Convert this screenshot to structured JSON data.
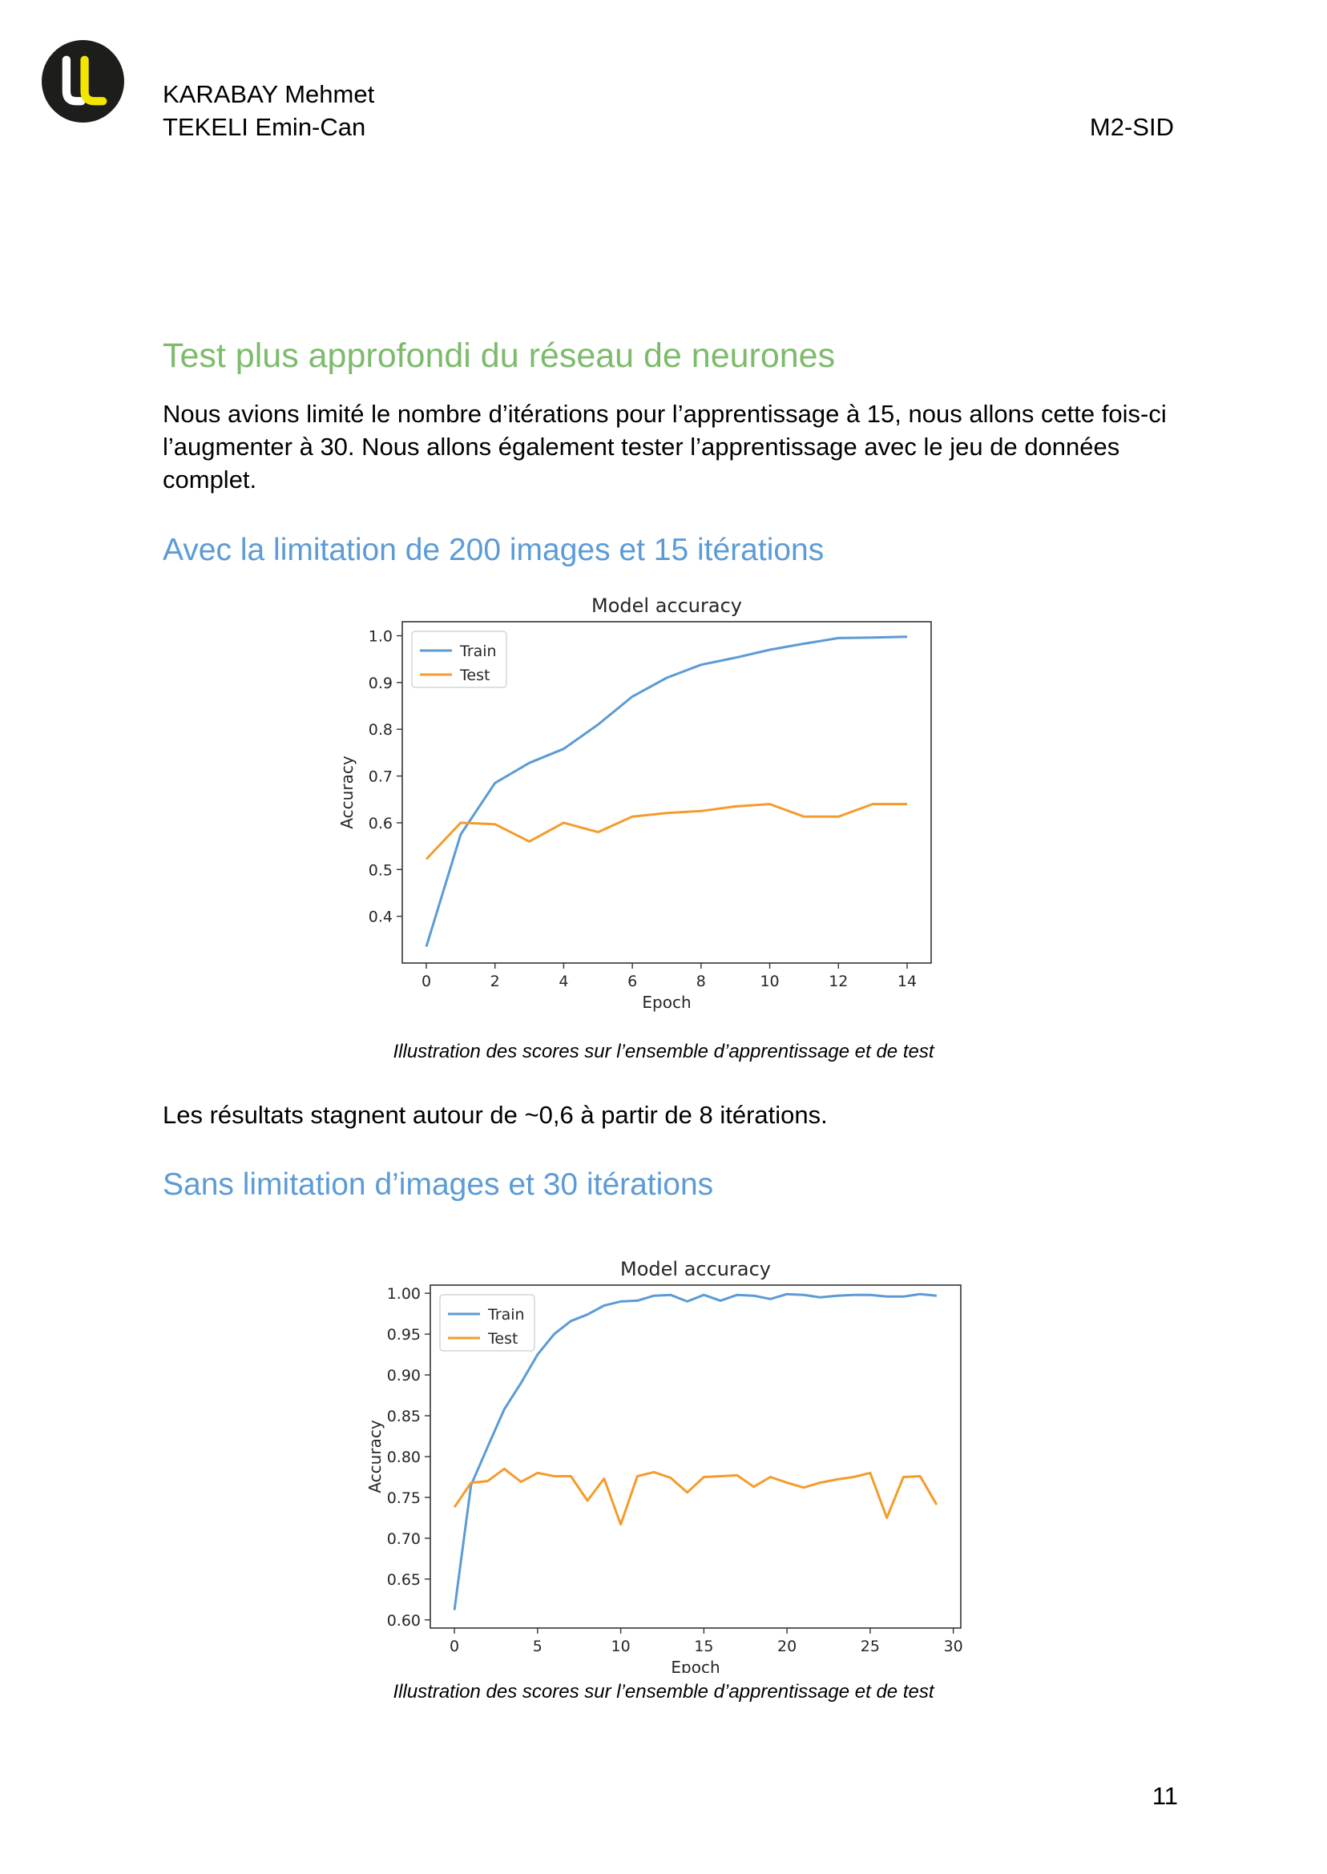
{
  "header": {
    "author1": "KARABAY Mehmet",
    "author2": "TEKELI Emin-Can",
    "program": "M2-SID"
  },
  "colors": {
    "logo_bg": "#1d1d1b",
    "logo_accent": "#f2e500",
    "heading_green": "#7dbb6c",
    "heading_blue": "#5c9bd6",
    "train": "#5b9bd5",
    "test": "#f39c2c"
  },
  "section": {
    "title": "Test plus approfondi du réseau de neurones",
    "intro_line1": "Nous avions limité le nombre d’itérations pour l’apprentissage à 15, nous allons cette fois-ci",
    "intro_line2": "l’augmenter à 30. Nous allons également tester l’apprentissage avec le jeu de données",
    "intro_line3": "complet."
  },
  "sub1": {
    "title": "Avec la limitation de 200 images et 15 itérations",
    "caption": "Illustration des scores sur l’ensemble d’apprentissage et de test",
    "conclusion": "Les résultats stagnent autour de ~0,6 à partir de 8 itérations."
  },
  "sub2": {
    "title": "Sans limitation d’images et 30 itérations",
    "caption": "Illustration des scores sur l’ensemble d’apprentissage et de test"
  },
  "page_number": "11",
  "chart_data": [
    {
      "type": "line",
      "title": "Model accuracy",
      "xlabel": "Epoch",
      "ylabel": "Accuracy",
      "xlim": [
        -0.7,
        14.7
      ],
      "ylim": [
        0.3,
        1.03
      ],
      "xticks": [
        0,
        2,
        4,
        6,
        8,
        10,
        12,
        14
      ],
      "yticks": [
        0.4,
        0.5,
        0.6,
        0.7,
        0.8,
        0.9,
        1.0
      ],
      "ytick_labels": [
        "0.4",
        "0.5",
        "0.6",
        "0.7",
        "0.8",
        "0.9",
        "1.0"
      ],
      "legend": "upper-left",
      "x": [
        0,
        1,
        2,
        3,
        4,
        5,
        6,
        7,
        8,
        9,
        10,
        11,
        12,
        13,
        14
      ],
      "series": [
        {
          "name": "Train",
          "color": "#5b9bd5",
          "values": [
            0.335,
            0.575,
            0.685,
            0.728,
            0.758,
            0.81,
            0.87,
            0.91,
            0.938,
            0.953,
            0.97,
            0.983,
            0.995,
            0.996,
            0.998
          ]
        },
        {
          "name": "Test",
          "color": "#f39c2c",
          "values": [
            0.522,
            0.6,
            0.597,
            0.56,
            0.6,
            0.58,
            0.613,
            0.621,
            0.625,
            0.635,
            0.64,
            0.613,
            0.613,
            0.64,
            0.64
          ]
        }
      ]
    },
    {
      "type": "line",
      "title": "Model accuracy",
      "xlabel": "Epoch",
      "ylabel": "Accuracy",
      "xlim": [
        -1.45,
        30.45
      ],
      "ylim": [
        0.59,
        1.01
      ],
      "xticks": [
        0,
        5,
        10,
        15,
        20,
        25,
        30
      ],
      "yticks": [
        0.6,
        0.65,
        0.7,
        0.75,
        0.8,
        0.85,
        0.9,
        0.95,
        1.0
      ],
      "ytick_labels": [
        "0.60",
        "0.65",
        "0.70",
        "0.75",
        "0.80",
        "0.85",
        "0.90",
        "0.95",
        "1.00"
      ],
      "legend": "upper-left",
      "x": [
        0,
        1,
        2,
        3,
        4,
        5,
        6,
        7,
        8,
        9,
        10,
        11,
        12,
        13,
        14,
        15,
        16,
        17,
        18,
        19,
        20,
        21,
        22,
        23,
        24,
        25,
        26,
        27,
        28,
        29
      ],
      "series": [
        {
          "name": "Train",
          "color": "#5b9bd5",
          "values": [
            0.612,
            0.765,
            0.812,
            0.858,
            0.89,
            0.925,
            0.95,
            0.966,
            0.974,
            0.985,
            0.99,
            0.991,
            0.997,
            0.998,
            0.99,
            0.998,
            0.991,
            0.998,
            0.997,
            0.993,
            0.999,
            0.998,
            0.995,
            0.997,
            0.998,
            0.998,
            0.996,
            0.996,
            0.999,
            0.997
          ]
        },
        {
          "name": "Test",
          "color": "#f39c2c",
          "values": [
            0.738,
            0.768,
            0.77,
            0.785,
            0.769,
            0.78,
            0.776,
            0.776,
            0.746,
            0.773,
            0.717,
            0.776,
            0.781,
            0.774,
            0.756,
            0.775,
            0.776,
            0.777,
            0.763,
            0.775,
            0.768,
            0.762,
            0.768,
            0.772,
            0.775,
            0.78,
            0.725,
            0.775,
            0.776,
            0.741
          ]
        }
      ]
    }
  ]
}
